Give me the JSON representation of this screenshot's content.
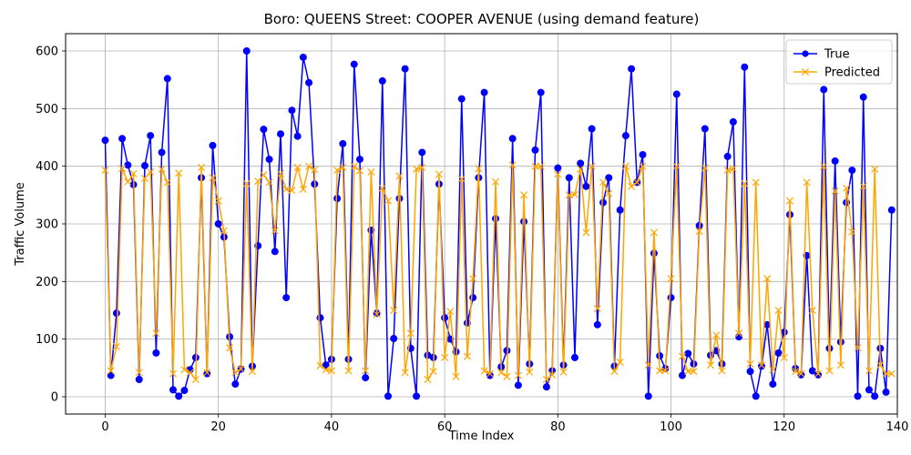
{
  "chart_data": {
    "type": "line",
    "title": "Boro: QUEENS Street: COOPER AVENUE (using demand feature)",
    "xlabel": "Time Index",
    "ylabel": "Traffic Volume",
    "xlim": [
      -7,
      140
    ],
    "ylim": [
      -30,
      630
    ],
    "xticks": [
      0,
      20,
      40,
      60,
      80,
      100,
      120,
      140
    ],
    "yticks": [
      0,
      100,
      200,
      300,
      400,
      500,
      600
    ],
    "grid": true,
    "legend_position": "top-right",
    "series": [
      {
        "name": "True",
        "color": "#0000ff",
        "marker": "circle",
        "values": [
          445,
          37,
          145,
          448,
          402,
          368,
          30,
          401,
          453,
          76,
          424,
          552,
          12,
          1,
          11,
          47,
          68,
          380,
          40,
          436,
          300,
          277,
          104,
          22,
          48,
          600,
          53,
          262,
          464,
          412,
          252,
          456,
          172,
          497,
          452,
          589,
          545,
          369,
          137,
          55,
          65,
          344,
          439,
          65,
          577,
          412,
          33,
          289,
          145,
          548,
          1,
          101,
          344,
          569,
          84,
          1,
          424,
          72,
          68,
          369,
          137,
          100,
          78,
          517,
          128,
          172,
          380,
          528,
          37,
          309,
          52,
          80,
          448,
          20,
          304,
          57,
          428,
          528,
          17,
          45,
          397,
          55,
          380,
          68,
          405,
          365,
          465,
          125,
          337,
          380,
          53,
          324,
          453,
          569,
          372,
          420,
          1,
          249,
          71,
          49,
          172,
          525,
          37,
          75,
          57,
          297,
          465,
          72,
          80,
          57,
          417,
          477,
          104,
          572,
          44,
          1,
          53,
          125,
          22,
          76,
          112,
          316,
          49,
          38,
          245,
          45,
          38,
          533,
          84,
          409,
          95,
          337,
          393,
          1,
          520,
          12,
          1,
          84,
          8,
          324
        ]
      },
      {
        "name": "Predicted",
        "color": "#ffa500",
        "marker": "x",
        "values": [
          393,
          45,
          87,
          396,
          373,
          387,
          42,
          379,
          390,
          110,
          395,
          372,
          40,
          388,
          47,
          42,
          30,
          398,
          42,
          380,
          340,
          288,
          85,
          42,
          48,
          370,
          44,
          374,
          385,
          372,
          288,
          387,
          360,
          358,
          398,
          360,
          400,
          394,
          54,
          47,
          45,
          393,
          398,
          45,
          400,
          392,
          45,
          390,
          143,
          362,
          340,
          150,
          383,
          42,
          110,
          395,
          398,
          30,
          44,
          386,
          68,
          148,
          35,
          378,
          70,
          205,
          396,
          45,
          40,
          373,
          42,
          35,
          402,
          37,
          350,
          43,
          400,
          400,
          30,
          38,
          386,
          43,
          350,
          351,
          395,
          285,
          400,
          153,
          372,
          353,
          44,
          60,
          400,
          365,
          372,
          400,
          55,
          285,
          45,
          45,
          205,
          400,
          70,
          44,
          44,
          287,
          397,
          55,
          107,
          45,
          393,
          396,
          110,
          370,
          57,
          372,
          55,
          205,
          47,
          150,
          68,
          340,
          44,
          40,
          372,
          150,
          40,
          400,
          45,
          357,
          55,
          362,
          286,
          85,
          365,
          45,
          395,
          55,
          40,
          40
        ]
      }
    ]
  }
}
